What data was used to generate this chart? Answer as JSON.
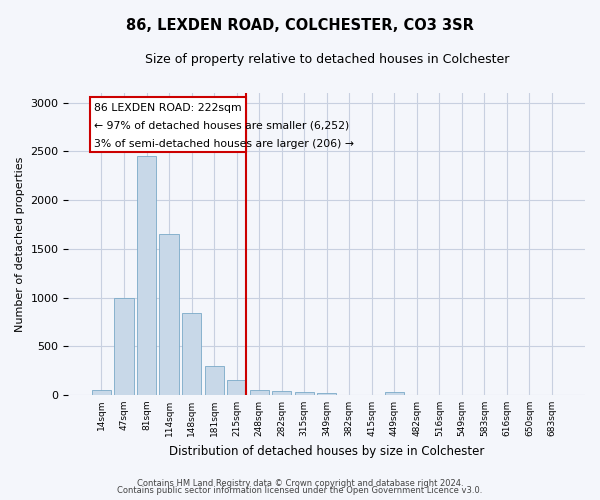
{
  "title1": "86, LEXDEN ROAD, COLCHESTER, CO3 3SR",
  "title2": "Size of property relative to detached houses in Colchester",
  "xlabel": "Distribution of detached houses by size in Colchester",
  "ylabel": "Number of detached properties",
  "categories": [
    "14sqm",
    "47sqm",
    "81sqm",
    "114sqm",
    "148sqm",
    "181sqm",
    "215sqm",
    "248sqm",
    "282sqm",
    "315sqm",
    "349sqm",
    "382sqm",
    "415sqm",
    "449sqm",
    "482sqm",
    "516sqm",
    "549sqm",
    "583sqm",
    "616sqm",
    "650sqm",
    "683sqm"
  ],
  "values": [
    55,
    1000,
    2450,
    1650,
    840,
    300,
    150,
    55,
    40,
    30,
    20,
    0,
    0,
    30,
    0,
    0,
    0,
    0,
    0,
    0,
    0
  ],
  "bar_color": "#c8d8e8",
  "bar_edge_color": "#7aaac8",
  "vline_color": "#cc0000",
  "annotation_line1": "86 LEXDEN ROAD: 222sqm",
  "annotation_line2": "← 97% of detached houses are smaller (6,252)",
  "annotation_line3": "3% of semi-detached houses are larger (206) →",
  "annotation_box_color": "#cc0000",
  "ylim": [
    0,
    3100
  ],
  "yticks": [
    0,
    500,
    1000,
    1500,
    2000,
    2500,
    3000
  ],
  "footer1": "Contains HM Land Registry data © Crown copyright and database right 2024.",
  "footer2": "Contains public sector information licensed under the Open Government Licence v3.0.",
  "bg_color": "#f4f6fb",
  "grid_color": "#c8d0e0"
}
